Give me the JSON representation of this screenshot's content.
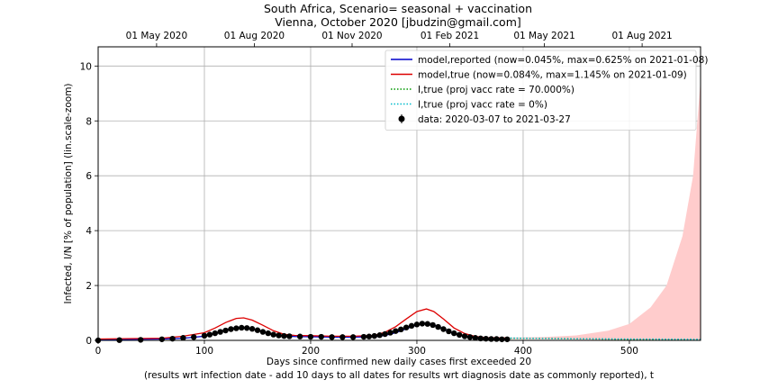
{
  "chart_data": {
    "type": "line",
    "title": [
      "South Africa, Scenario= seasonal + vaccination",
      "Vienna, October 2020 [jbudzin@gmail.com]"
    ],
    "xlabel": [
      "Days since confirmed new daily cases first exceeded 20",
      "(results wrt infection date - add 10 days to all dates for results wrt diagnosis date as commonly reported), t"
    ],
    "ylabel": "Infected, I/N [% of population] (lin.scale-zoom)",
    "xlim": [
      0,
      567
    ],
    "ylim": [
      0,
      10.7
    ],
    "xticks": [
      0,
      100,
      200,
      300,
      400,
      500
    ],
    "xtick_labels": [
      "0",
      "100",
      "200",
      "300",
      "400",
      "500"
    ],
    "yticks": [
      0,
      2,
      4,
      6,
      8,
      10
    ],
    "ytick_labels": [
      "0",
      "2",
      "4",
      "6",
      "8",
      "10"
    ],
    "top_axis": {
      "ticks": [
        55,
        147,
        239,
        331,
        420,
        512
      ],
      "labels": [
        "01 May 2020",
        "01 Aug 2020",
        "01 Nov 2020",
        "01 Feb 2021",
        "01 May 2021",
        "01 Aug 2021"
      ]
    },
    "grid": true,
    "legend_position": "upper-right",
    "series": [
      {
        "name": "model,reported (now=0.045%, max=0.625% on 2021-01-08)",
        "style": "solid",
        "color": "#0000cc",
        "x": [
          0,
          60,
          80,
          100,
          110,
          120,
          130,
          136,
          145,
          155,
          165,
          175,
          185,
          200,
          220,
          240,
          260,
          270,
          280,
          290,
          300,
          308,
          315,
          325,
          335,
          345,
          355,
          365,
          385
        ],
        "y": [
          0.03,
          0.05,
          0.08,
          0.15,
          0.25,
          0.38,
          0.47,
          0.48,
          0.43,
          0.32,
          0.22,
          0.16,
          0.14,
          0.13,
          0.12,
          0.12,
          0.13,
          0.18,
          0.28,
          0.42,
          0.57,
          0.625,
          0.58,
          0.42,
          0.25,
          0.15,
          0.09,
          0.06,
          0.045
        ]
      },
      {
        "name": "model,true (now=0.084%, max=1.145% on 2021-01-09)",
        "style": "solid",
        "color": "#dd0000",
        "x": [
          0,
          60,
          80,
          100,
          110,
          120,
          130,
          137,
          145,
          155,
          165,
          175,
          185,
          200,
          220,
          240,
          260,
          270,
          280,
          290,
          300,
          309,
          316,
          325,
          335,
          345,
          355,
          365,
          385
        ],
        "y": [
          0.05,
          0.08,
          0.15,
          0.28,
          0.45,
          0.65,
          0.8,
          0.82,
          0.74,
          0.55,
          0.35,
          0.22,
          0.18,
          0.17,
          0.15,
          0.15,
          0.18,
          0.3,
          0.5,
          0.78,
          1.05,
          1.145,
          1.05,
          0.78,
          0.45,
          0.25,
          0.14,
          0.1,
          0.084
        ]
      },
      {
        "name": "I,true (proj vacc rate = 70.000%)",
        "style": "dotted",
        "color": "#009900",
        "x": [
          385,
          450,
          500,
          567
        ],
        "y": [
          0.08,
          0.06,
          0.04,
          0.02
        ]
      },
      {
        "name": "I,true (proj vacc rate = 0%)",
        "style": "dotted",
        "color": "#00bbcc",
        "x": [
          385,
          450,
          500,
          567
        ],
        "y": [
          0.084,
          0.06,
          0.05,
          0.04
        ]
      },
      {
        "name": "data: 2020-03-07 to 2021-03-27",
        "style": "points",
        "color": "#000000",
        "x": [
          0,
          20,
          40,
          60,
          70,
          80,
          90,
          100,
          105,
          110,
          115,
          120,
          125,
          130,
          135,
          140,
          145,
          150,
          155,
          160,
          165,
          170,
          175,
          180,
          190,
          200,
          210,
          220,
          230,
          240,
          250,
          255,
          260,
          265,
          270,
          275,
          280,
          285,
          290,
          295,
          300,
          305,
          310,
          315,
          320,
          325,
          330,
          335,
          340,
          345,
          350,
          355,
          360,
          365,
          370,
          375,
          380,
          385
        ],
        "y": [
          0.0,
          0.01,
          0.02,
          0.04,
          0.06,
          0.09,
          0.12,
          0.17,
          0.21,
          0.26,
          0.31,
          0.36,
          0.41,
          0.44,
          0.46,
          0.45,
          0.42,
          0.37,
          0.31,
          0.26,
          0.21,
          0.18,
          0.16,
          0.15,
          0.14,
          0.13,
          0.13,
          0.12,
          0.12,
          0.12,
          0.13,
          0.14,
          0.16,
          0.19,
          0.23,
          0.28,
          0.34,
          0.4,
          0.47,
          0.53,
          0.58,
          0.61,
          0.6,
          0.56,
          0.49,
          0.41,
          0.33,
          0.26,
          0.2,
          0.15,
          0.12,
          0.09,
          0.07,
          0.06,
          0.05,
          0.05,
          0.04,
          0.04
        ]
      }
    ],
    "projection_band": {
      "color": "#ffcccc",
      "x": [
        385,
        420,
        450,
        480,
        500,
        520,
        535,
        550,
        560,
        567
      ],
      "upper": [
        0.1,
        0.12,
        0.18,
        0.35,
        0.6,
        1.2,
        2.0,
        3.8,
        6.0,
        9.5
      ],
      "lower": [
        0.05,
        0.04,
        0.03,
        0.02,
        0.02,
        0.02,
        0.02,
        0.02,
        0.02,
        0.02
      ]
    }
  }
}
